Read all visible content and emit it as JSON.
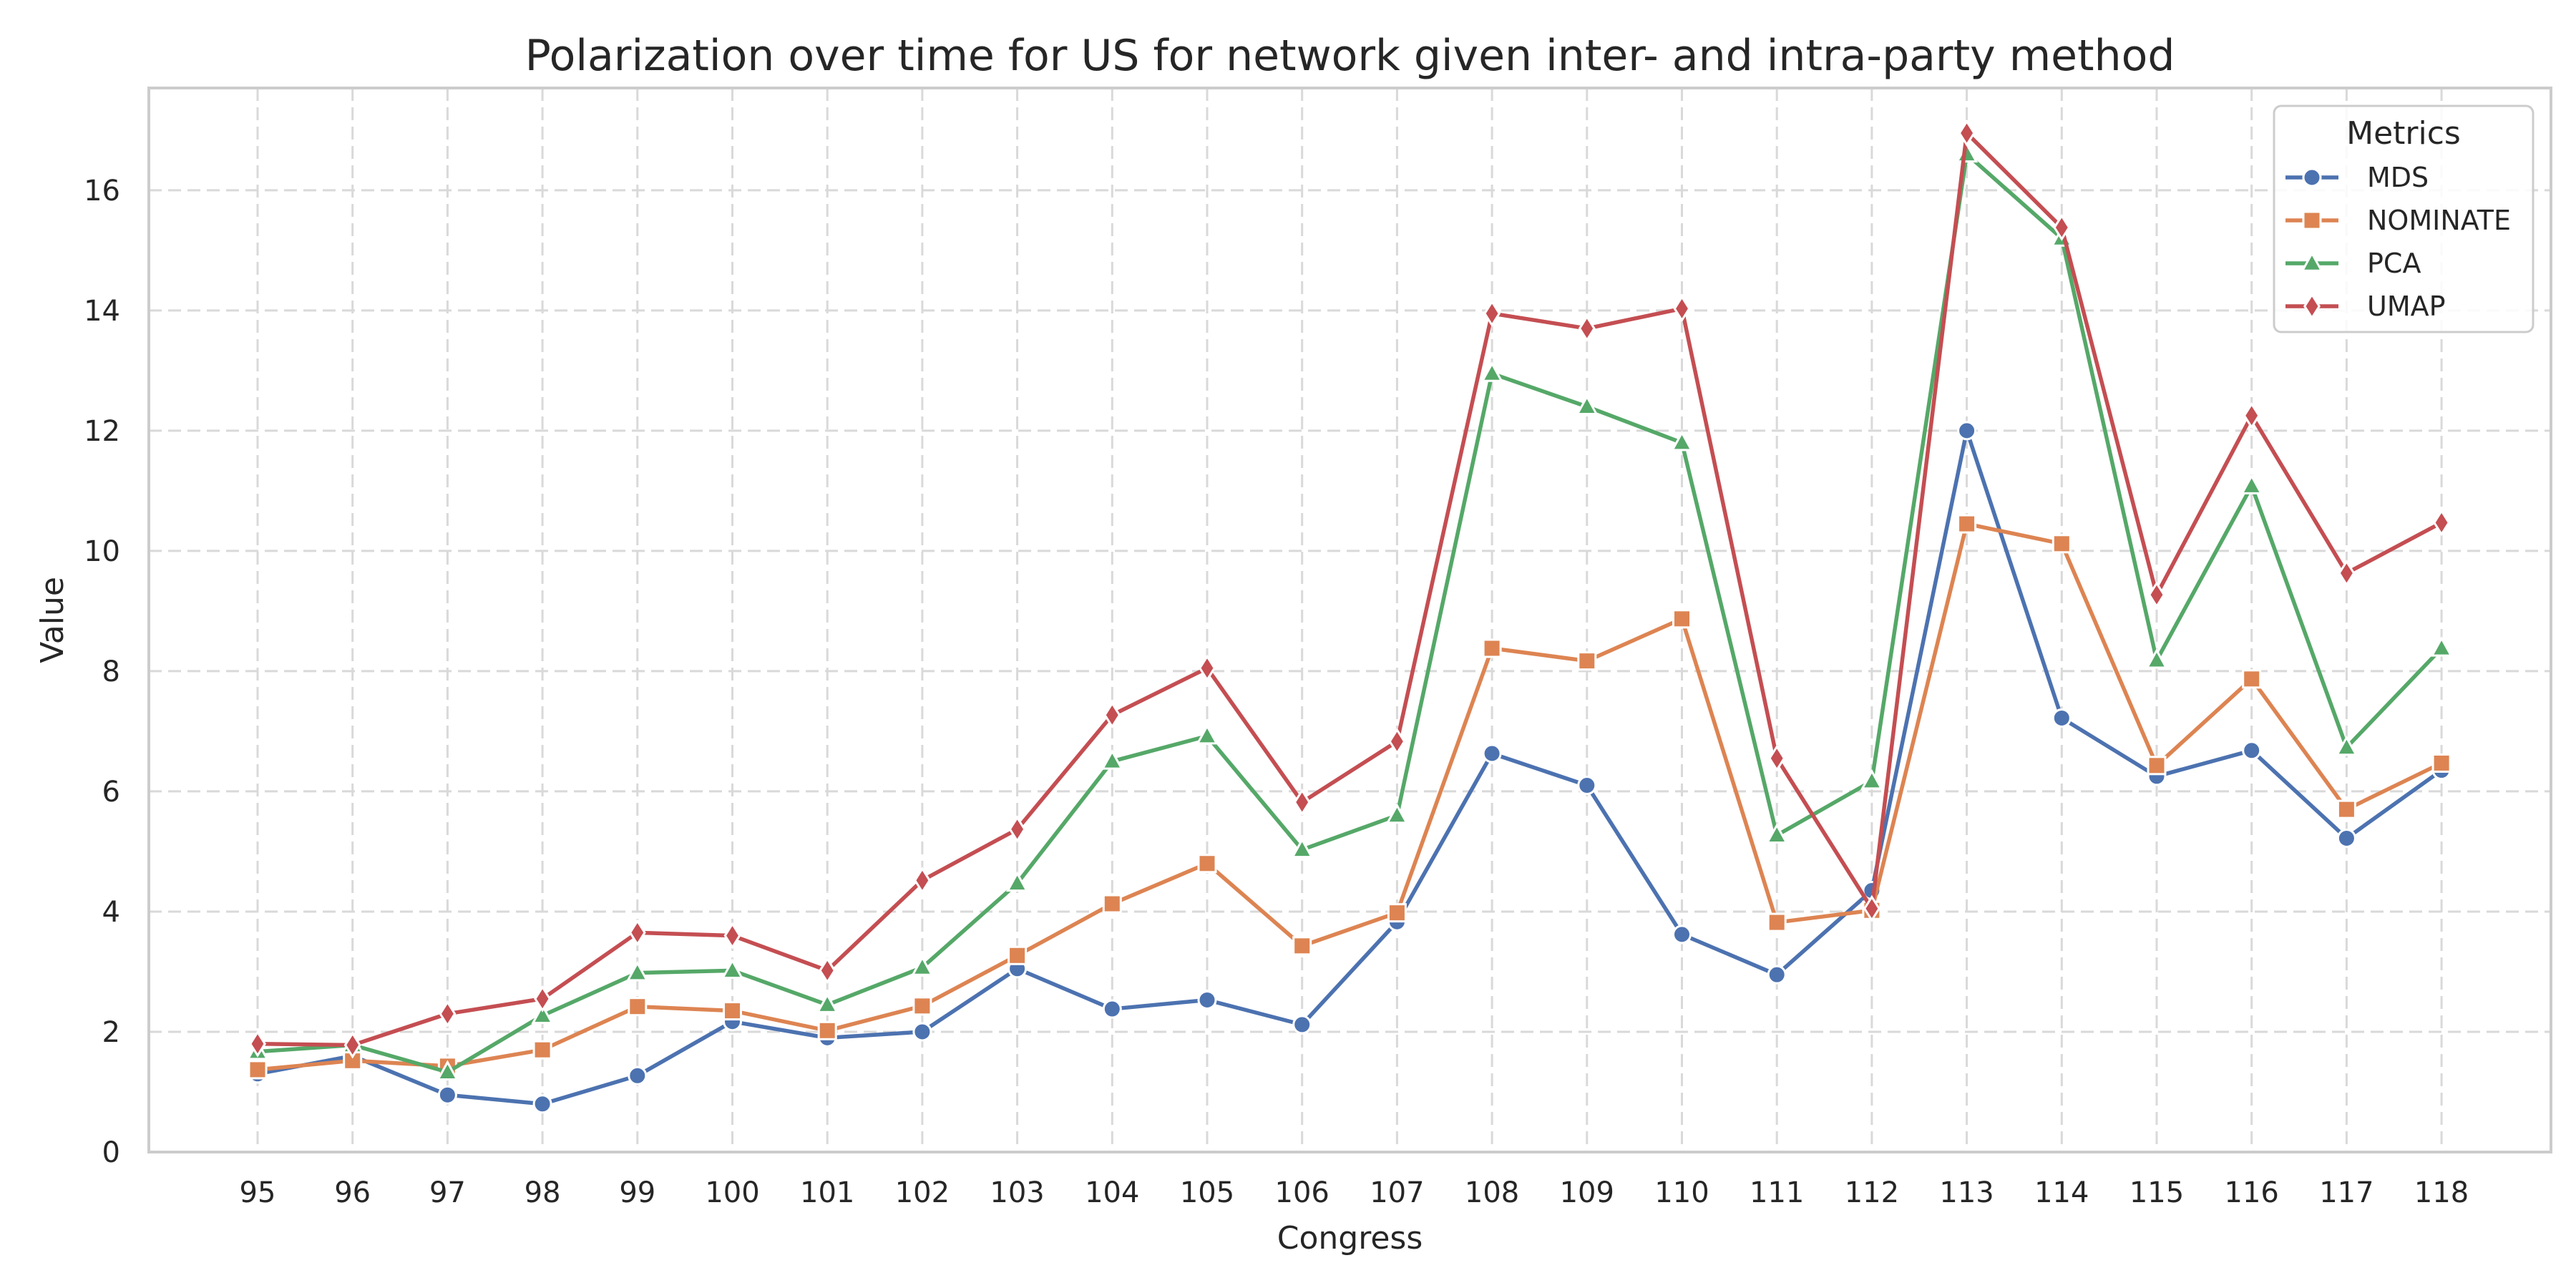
{
  "chart_data": {
    "type": "line",
    "title": "Polarization over time for US for network given inter- and intra-party method",
    "xlabel": "Congress",
    "ylabel": "Value",
    "categories": [
      "95",
      "96",
      "97",
      "98",
      "99",
      "100",
      "101",
      "102",
      "103",
      "104",
      "105",
      "106",
      "107",
      "108",
      "109",
      "110",
      "111",
      "112",
      "113",
      "114",
      "115",
      "116",
      "117",
      "118"
    ],
    "ylim": [
      0,
      17.7
    ],
    "yticks": [
      0,
      2,
      4,
      6,
      8,
      10,
      12,
      14,
      16
    ],
    "grid": true,
    "legend": {
      "title": "Metrics",
      "placement": "top-right"
    },
    "series": [
      {
        "name": "MDS",
        "color": "#4c72b0",
        "marker": "circle",
        "values": [
          1.3,
          1.6,
          0.95,
          0.8,
          1.27,
          2.17,
          1.9,
          2.0,
          3.05,
          2.38,
          2.53,
          2.12,
          3.83,
          6.63,
          6.1,
          3.62,
          2.95,
          4.35,
          12.0,
          7.22,
          6.25,
          6.68,
          5.22,
          6.35
        ]
      },
      {
        "name": "NOMINATE",
        "color": "#dd8452",
        "marker": "square",
        "values": [
          1.37,
          1.52,
          1.43,
          1.7,
          2.42,
          2.35,
          2.02,
          2.43,
          3.27,
          4.13,
          4.8,
          3.43,
          3.98,
          8.38,
          8.17,
          8.87,
          3.82,
          4.02,
          10.45,
          10.12,
          6.43,
          7.87,
          5.7,
          6.47
        ]
      },
      {
        "name": "PCA",
        "color": "#55a868",
        "marker": "triangle",
        "values": [
          1.67,
          1.78,
          1.33,
          2.27,
          2.98,
          3.02,
          2.45,
          3.07,
          4.47,
          6.5,
          6.92,
          5.03,
          5.6,
          12.95,
          12.4,
          11.8,
          5.27,
          6.17,
          16.6,
          15.2,
          8.18,
          11.08,
          6.73,
          8.38
        ]
      },
      {
        "name": "UMAP",
        "color": "#c44e52",
        "marker": "diamond",
        "values": [
          1.8,
          1.78,
          2.3,
          2.55,
          3.65,
          3.6,
          3.02,
          4.52,
          5.37,
          7.27,
          8.05,
          5.82,
          6.83,
          13.95,
          13.7,
          14.03,
          6.55,
          4.05,
          16.95,
          15.38,
          9.27,
          12.25,
          9.63,
          10.47
        ]
      }
    ]
  }
}
